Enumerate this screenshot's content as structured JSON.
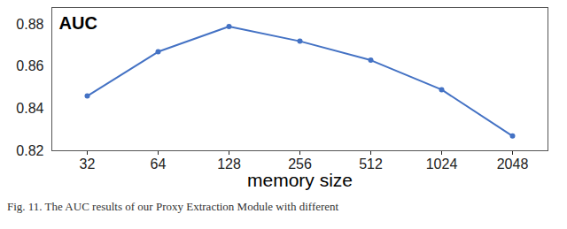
{
  "chart_data": {
    "type": "line",
    "y_label": "AUC",
    "x_label": "memory size",
    "caption": "Fig. 11.  The AUC results of our Proxy Extraction Module with different",
    "categories": [
      "32",
      "64",
      "128",
      "256",
      "512",
      "1024",
      "2048"
    ],
    "values": [
      0.846,
      0.867,
      0.879,
      0.872,
      0.863,
      0.849,
      0.827
    ],
    "color": "#4472c4",
    "marker": "circle",
    "ylim": [
      0.82,
      0.888
    ],
    "yticks": [
      0.82,
      0.84,
      0.86,
      0.88
    ],
    "grid": false
  }
}
